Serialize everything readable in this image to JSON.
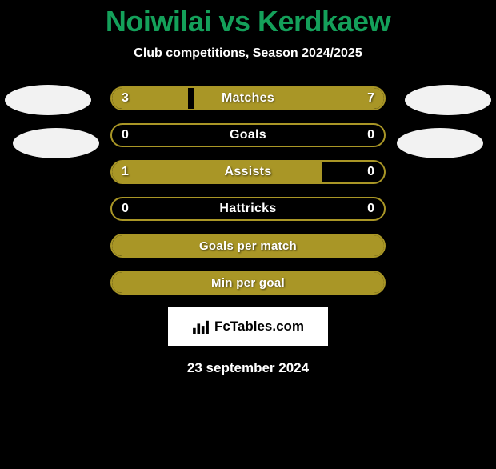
{
  "title": "Noiwilai vs Kerdkaew",
  "subtitle": "Club competitions, Season 2024/2025",
  "date": "23 september 2024",
  "badge": {
    "text": "FcTables.com"
  },
  "colors": {
    "title": "#14a05a",
    "accent": "#a99626",
    "background": "#000000",
    "white": "#ffffff"
  },
  "rows": [
    {
      "label": "Matches",
      "left_value": "3",
      "right_value": "7",
      "left_pct": 28,
      "right_pct": 70,
      "border_color": "#a99626",
      "left_fill": "#a99626",
      "right_fill": "#a99626",
      "label_fontsize": 16
    },
    {
      "label": "Goals",
      "left_value": "0",
      "right_value": "0",
      "left_pct": 0,
      "right_pct": 0,
      "border_color": "#a99626",
      "left_fill": "#a99626",
      "right_fill": "#a99626",
      "label_fontsize": 16
    },
    {
      "label": "Assists",
      "left_value": "1",
      "right_value": "0",
      "left_pct": 77,
      "right_pct": 0,
      "border_color": "#a99626",
      "left_fill": "#a99626",
      "right_fill": "#a99626",
      "label_fontsize": 16
    },
    {
      "label": "Hattricks",
      "left_value": "0",
      "right_value": "0",
      "left_pct": 0,
      "right_pct": 0,
      "border_color": "#a99626",
      "left_fill": "#a99626",
      "right_fill": "#a99626",
      "label_fontsize": 16
    },
    {
      "label": "Goals per match",
      "left_value": "",
      "right_value": "",
      "left_pct": 100,
      "right_pct": 0,
      "border_color": "#a99626",
      "left_fill": "#a99626",
      "right_fill": "#a99626",
      "label_fontsize": 15
    },
    {
      "label": "Min per goal",
      "left_value": "",
      "right_value": "",
      "left_pct": 100,
      "right_pct": 0,
      "border_color": "#a99626",
      "left_fill": "#a99626",
      "right_fill": "#a99626",
      "label_fontsize": 15
    }
  ]
}
